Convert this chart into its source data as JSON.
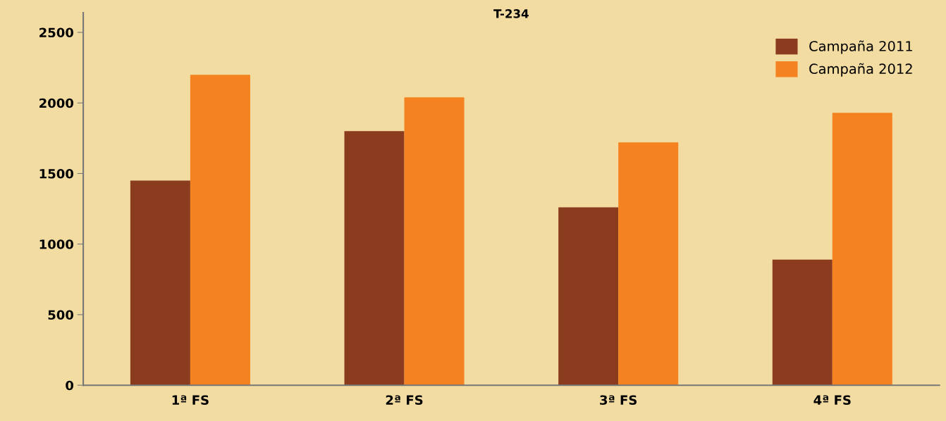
{
  "chart_data": {
    "type": "bar",
    "title": "T-234",
    "categories": [
      "1ª FS",
      "2ª FS",
      "3ª FS",
      "4ª FS"
    ],
    "series": [
      {
        "name": "Campaña 2011",
        "color": "#8b3b1e",
        "values": [
          1450,
          1800,
          1260,
          890
        ]
      },
      {
        "name": "Campaña 2012",
        "color": "#f58220",
        "values": [
          2200,
          2040,
          1720,
          1930
        ]
      }
    ],
    "ylim": [
      0,
      2640
    ],
    "yticks": [
      0,
      500,
      1000,
      1500,
      2000,
      2500
    ],
    "grid": false,
    "legend": "top right"
  }
}
